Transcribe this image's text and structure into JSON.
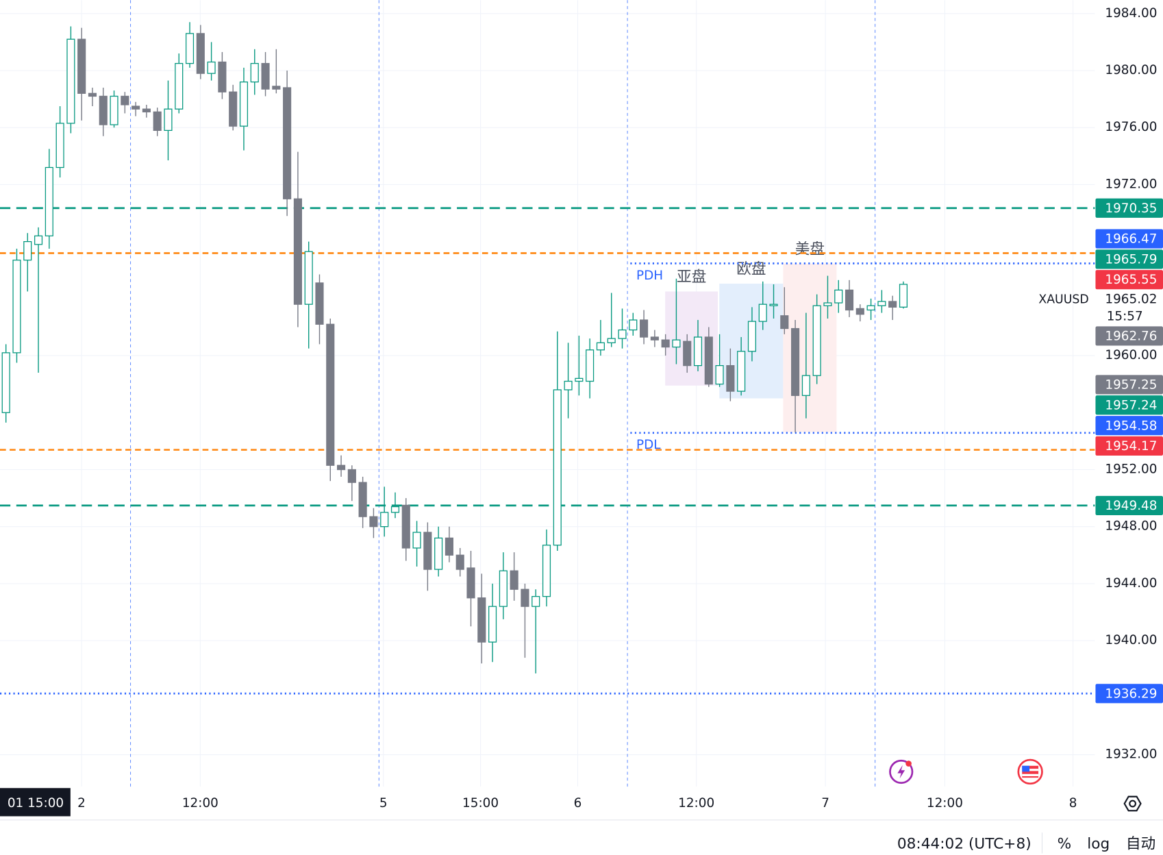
{
  "chart_data": {
    "type": "candlestick",
    "symbol": "XAUUSD",
    "x": [
      0,
      1,
      2,
      3,
      4,
      5,
      6,
      7,
      8,
      9,
      10,
      11,
      12,
      13,
      14,
      15,
      16,
      17,
      18,
      19,
      20,
      21,
      22,
      23,
      24,
      25,
      26,
      27,
      28,
      29,
      30,
      31,
      32,
      33,
      34,
      35,
      36,
      37,
      38,
      39,
      40,
      41,
      42,
      43,
      44,
      45,
      46,
      47,
      48,
      49,
      50,
      51,
      52,
      53,
      54,
      55,
      56,
      57,
      58,
      59,
      60,
      61,
      62,
      63,
      64,
      65,
      66,
      67,
      68,
      69,
      70,
      71,
      72,
      73,
      74,
      75,
      76,
      77,
      78,
      79,
      80,
      81,
      82,
      83
    ],
    "open": [
      1956.0,
      1960.2,
      1966.7,
      1967.8,
      1968.4,
      1973.2,
      1976.3,
      1982.2,
      1978.4,
      1978.2,
      1976.2,
      1978.2,
      1977.5,
      1977.3,
      1977.1,
      1975.8,
      1977.3,
      1980.5,
      1982.6,
      1979.8,
      1980.6,
      1978.5,
      1976.1,
      1979.2,
      1980.5,
      1978.9,
      1978.8,
      1971.0,
      1963.6,
      1965.1,
      1962.2,
      1952.3,
      1952.0,
      1951.1,
      1948.7,
      1948.0,
      1949.0,
      1949.5,
      1946.5,
      1947.6,
      1945.0,
      1947.2,
      1946.0,
      1945.1,
      1943.0,
      1939.9,
      1942.4,
      1944.9,
      1943.6,
      1942.4,
      1943.1,
      1946.7,
      1957.6,
      1958.2,
      1958.2,
      1960.4,
      1960.9,
      1961.2,
      1961.8,
      1962.5,
      1961.3,
      1961.1,
      1960.6,
      1961.0,
      1959.3,
      1961.3,
      1958.0,
      1959.3,
      1957.5,
      1960.3,
      1962.4,
      1963.5,
      1962.8,
      1961.9,
      1957.2,
      1958.6,
      1963.5,
      1963.7,
      1964.6,
      1963.3,
      1963.2,
      1963.5,
      1963.8,
      1963.4
    ],
    "high": [
      1960.8,
      1967.5,
      1968.6,
      1969.0,
      1974.5,
      1977.5,
      1983.1,
      1983.0,
      1978.8,
      1978.8,
      1978.6,
      1978.5,
      1977.8,
      1977.6,
      1977.4,
      1979.3,
      1981.2,
      1983.4,
      1983.2,
      1982.0,
      1981.3,
      1979.0,
      1980.2,
      1981.5,
      1981.3,
      1981.5,
      1980.0,
      1974.3,
      1968.0,
      1965.7,
      1962.6,
      1953.0,
      1952.3,
      1951.5,
      1949.3,
      1950.8,
      1950.4,
      1950.0,
      1948.4,
      1948.3,
      1948.0,
      1948.0,
      1946.5,
      1946.3,
      1944.7,
      1944.0,
      1946.2,
      1946.2,
      1944.0,
      1943.6,
      1947.8,
      1961.7,
      1960.9,
      1961.4,
      1961.2,
      1962.5,
      1964.4,
      1963.3,
      1963.0,
      1963.2,
      1961.8,
      1961.5,
      1965.4,
      1961.5,
      1962.5,
      1962.0,
      1961.5,
      1960.5,
      1961.3,
      1963.4,
      1965.2,
      1965.0,
      1964.8,
      1962.5,
      1963.0,
      1964.3,
      1965.6,
      1965.3,
      1965.3,
      1963.6,
      1964.0,
      1964.6,
      1964.2,
      1965.2
    ],
    "low": [
      1955.3,
      1959.5,
      1964.5,
      1958.8,
      1967.5,
      1972.5,
      1975.6,
      1976.5,
      1977.5,
      1975.4,
      1976.0,
      1977.0,
      1976.8,
      1976.7,
      1975.4,
      1973.7,
      1977.0,
      1980.2,
      1979.4,
      1979.3,
      1978.0,
      1975.8,
      1974.4,
      1978.3,
      1978.2,
      1978.4,
      1969.8,
      1962.0,
      1960.5,
      1960.8,
      1951.2,
      1951.5,
      1949.8,
      1947.9,
      1947.2,
      1947.3,
      1948.6,
      1945.6,
      1945.2,
      1943.5,
      1944.5,
      1945.5,
      1944.5,
      1941.0,
      1938.4,
      1938.5,
      1941.5,
      1942.8,
      1938.8,
      1937.7,
      1942.4,
      1946.3,
      1955.6,
      1957.2,
      1957.0,
      1960.0,
      1960.6,
      1960.5,
      1961.4,
      1960.8,
      1960.6,
      1960.0,
      1959.4,
      1958.8,
      1958.9,
      1957.8,
      1957.8,
      1956.8,
      1957.2,
      1959.6,
      1961.8,
      1962.6,
      1961.5,
      1954.6,
      1955.6,
      1958.0,
      1962.6,
      1963.0,
      1962.7,
      1962.4,
      1962.5,
      1963.0,
      1962.5,
      1963.3
    ],
    "close": [
      1960.2,
      1966.7,
      1968.0,
      1968.4,
      1973.2,
      1976.3,
      1982.2,
      1978.4,
      1978.2,
      1976.2,
      1978.2,
      1977.6,
      1977.3,
      1977.1,
      1975.8,
      1977.3,
      1980.5,
      1982.6,
      1979.8,
      1980.6,
      1978.5,
      1976.1,
      1979.2,
      1980.5,
      1978.7,
      1978.7,
      1971.0,
      1963.6,
      1967.3,
      1962.2,
      1952.3,
      1952.0,
      1951.1,
      1948.7,
      1948.0,
      1949.0,
      1949.4,
      1946.5,
      1947.6,
      1945.0,
      1947.2,
      1946.0,
      1945.0,
      1943.0,
      1939.9,
      1942.4,
      1944.9,
      1943.6,
      1942.4,
      1943.1,
      1946.7,
      1957.6,
      1958.2,
      1958.4,
      1960.4,
      1960.9,
      1961.2,
      1961.8,
      1962.5,
      1961.3,
      1961.1,
      1960.6,
      1961.1,
      1959.3,
      1961.3,
      1958.0,
      1959.3,
      1957.5,
      1960.3,
      1962.4,
      1963.6,
      1963.6,
      1961.9,
      1957.2,
      1958.6,
      1963.5,
      1963.7,
      1964.6,
      1963.2,
      1962.9,
      1963.5,
      1963.8,
      1963.4,
      1965.0
    ],
    "up_color": "#089981",
    "down_color": "#787b86",
    "xlim": [
      -0.55,
      100.7
    ],
    "ylim": [
      1929.76,
      1984.94
    ],
    "grid": true,
    "yticks": [
      {
        "value": 1984,
        "label": "1984.00"
      },
      {
        "value": 1980,
        "label": "1980.00"
      },
      {
        "value": 1976,
        "label": "1976.00"
      },
      {
        "value": 1972,
        "label": "1972.00"
      },
      {
        "value": 1960,
        "label": "1960.00"
      },
      {
        "value": 1952,
        "label": "1952.00"
      },
      {
        "value": 1948,
        "label": "1948.00"
      },
      {
        "value": 1944,
        "label": "1944.00"
      },
      {
        "value": 1940,
        "label": "1940.00"
      },
      {
        "value": 1932,
        "label": "1932.00"
      }
    ],
    "xticks": [
      {
        "value": 6.99,
        "label": "2"
      },
      {
        "value": 17.97,
        "label": "12:00"
      },
      {
        "value": 34.91,
        "label": "5"
      },
      {
        "value": 43.89,
        "label": "15:00"
      },
      {
        "value": 52.88,
        "label": "6"
      },
      {
        "value": 63.85,
        "label": "12:00"
      },
      {
        "value": 75.79,
        "label": "7"
      },
      {
        "value": 86.83,
        "label": "12:00"
      },
      {
        "value": 98.69,
        "label": "8"
      }
    ],
    "crosshair_x_label": "01 15:00",
    "session_breaks": [
      11.52,
      34.5,
      57.48,
      80.38
    ],
    "lines": [
      {
        "value": 1970.35,
        "color": "#089981",
        "style": "dashed"
      },
      {
        "value": 1967.19,
        "color": "#ff8c1a",
        "style": "dashed-short"
      },
      {
        "value": 1966.47,
        "color": "#2962ff",
        "style": "dotted",
        "from": 57.75,
        "label": "PDH"
      },
      {
        "value": 1954.58,
        "color": "#2962ff",
        "style": "dotted",
        "from": 57.75,
        "label": "PDL"
      },
      {
        "value": 1953.39,
        "color": "#ff8c1a",
        "style": "dashed-short"
      },
      {
        "value": 1949.48,
        "color": "#089981",
        "style": "dashed"
      },
      {
        "value": 1936.29,
        "color": "#2962ff",
        "style": "dotted"
      }
    ],
    "sessions": [
      {
        "label": "亚盘",
        "x0": 60.97,
        "x1": 65.84,
        "high": 1964.5,
        "low": 1957.9,
        "color": "#f3e9f7"
      },
      {
        "label": "欧盘",
        "x0": 65.98,
        "x1": 71.88,
        "high": 1965.05,
        "low": 1957.0,
        "color": "#e3eefc"
      },
      {
        "label": "美盘",
        "x0": 71.88,
        "x1": 76.82,
        "high": 1966.45,
        "low": 1954.64,
        "color": "#fdeeee"
      }
    ],
    "price_labels": [
      {
        "value": 1970.35,
        "color": "#089981"
      },
      {
        "value": 1966.47,
        "color": "#2962ff"
      },
      {
        "value": 1965.79,
        "color": "#089981"
      },
      {
        "value": 1965.55,
        "color": "#f23645"
      },
      {
        "value": 1962.76,
        "color": "#787b86"
      },
      {
        "value": 1957.25,
        "color": "#787b86"
      },
      {
        "value": 1957.24,
        "color": "#089981"
      },
      {
        "value": 1954.58,
        "color": "#2962ff"
      },
      {
        "value": 1954.17,
        "color": "#f23645"
      },
      {
        "value": 1949.48,
        "color": "#089981"
      },
      {
        "value": 1936.29,
        "color": "#2962ff"
      }
    ],
    "last_price": {
      "value": 1965.02,
      "countdown": "15:57"
    }
  },
  "status_bar": {
    "time": "08:44:02 (UTC+8)",
    "buttons": [
      "%",
      "log",
      "自动"
    ]
  }
}
